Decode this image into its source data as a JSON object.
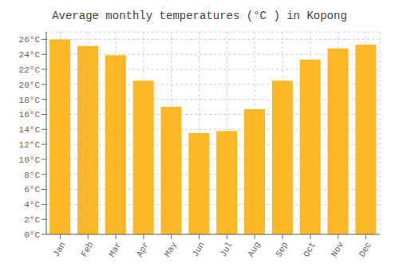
{
  "chart_data": {
    "type": "bar",
    "title": "Average monthly temperatures (°C ) in Kopong",
    "categories": [
      "Jan",
      "Feb",
      "Mar",
      "Apr",
      "May",
      "Jun",
      "Jul",
      "Aug",
      "Sep",
      "Oct",
      "Nov",
      "Dec"
    ],
    "values": [
      26.0,
      25.1,
      23.9,
      20.5,
      17.0,
      13.5,
      13.8,
      16.7,
      20.5,
      23.3,
      24.8,
      25.3
    ],
    "color": "#FDB827",
    "ylim": [
      0,
      27
    ],
    "yticks": [
      {
        "value": 0,
        "label": "0°C"
      },
      {
        "value": 2,
        "label": "2°C"
      },
      {
        "value": 4,
        "label": "4°C"
      },
      {
        "value": 6,
        "label": "6°C"
      },
      {
        "value": 8,
        "label": "8°C"
      },
      {
        "value": 10,
        "label": "10°C"
      },
      {
        "value": 12,
        "label": "12°C"
      },
      {
        "value": 14,
        "label": "14°C"
      },
      {
        "value": 16,
        "label": "16°C"
      },
      {
        "value": 18,
        "label": "18°C"
      },
      {
        "value": 20,
        "label": "20°C"
      },
      {
        "value": 22,
        "label": "22°C"
      },
      {
        "value": 24,
        "label": "24°C"
      },
      {
        "value": 26,
        "label": "26°C"
      }
    ],
    "grid": true
  }
}
